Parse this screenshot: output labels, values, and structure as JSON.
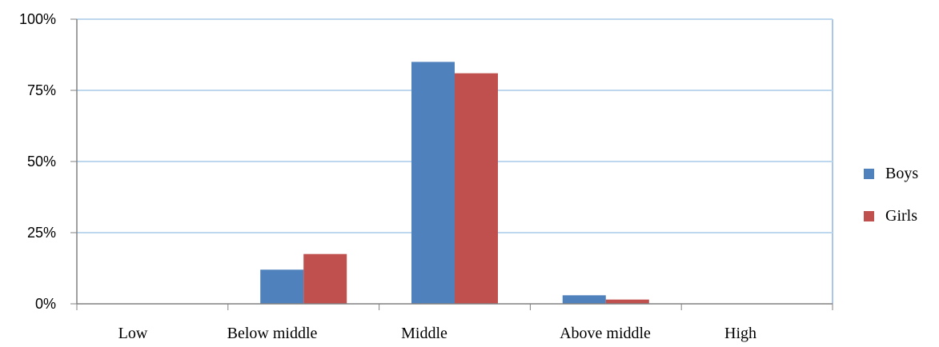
{
  "chart_data": {
    "type": "bar",
    "categories": [
      "Low",
      "Below middle",
      "Middle",
      "Above middle",
      "High"
    ],
    "series": [
      {
        "name": "Boys",
        "values": [
          0,
          12,
          85,
          3,
          0
        ],
        "color": "#4F81BD"
      },
      {
        "name": "Girls",
        "values": [
          0,
          17.5,
          81,
          1.5,
          0
        ],
        "color": "#C0504D"
      }
    ],
    "yticks": [
      "0%",
      "25%",
      "50%",
      "75%",
      "100%"
    ],
    "ylim": [
      0,
      100
    ],
    "grid": true,
    "legend_position": "right",
    "colors": {
      "gridline": "#BDD7EE",
      "axis": "#808080",
      "frame": "#8EB4E3"
    }
  }
}
